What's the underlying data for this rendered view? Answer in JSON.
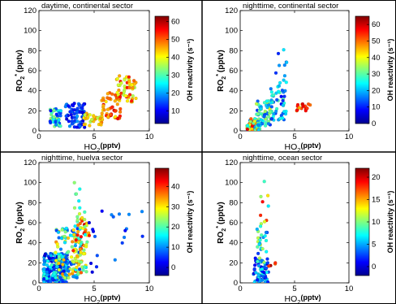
{
  "chart_data": [
    {
      "type": "scatter",
      "title": "daytime, continental sector",
      "xlabel_main": "HO",
      "xlabel_sub": "2",
      "xlabel_unit": "(pptv)",
      "ylabel_main": "RO",
      "ylabel_sub": "2",
      "ylabel_sup": "*",
      "ylabel_unit": "(pptv)",
      "xlim": [
        0,
        10
      ],
      "ylim": [
        0,
        120
      ],
      "xticks": [
        "0",
        "5",
        "10"
      ],
      "yticks": [
        "0",
        "20",
        "40",
        "60",
        "80",
        "100",
        "120"
      ],
      "colorbar": {
        "label": "OH reactivity (s⁻¹)",
        "range": [
          3,
          63
        ],
        "ticks": [
          "10",
          "20",
          "30",
          "40",
          "50",
          "60"
        ]
      },
      "clusters": [
        {
          "x": [
            1.0,
            2.0
          ],
          "y": [
            2,
            22
          ],
          "c": [
            10,
            35
          ],
          "n": 45
        },
        {
          "x": [
            2.4,
            4.2
          ],
          "y": [
            3,
            28
          ],
          "c": [
            8,
            20
          ],
          "n": 70
        },
        {
          "x": [
            4.0,
            5.8
          ],
          "y": [
            5,
            18
          ],
          "c": [
            35,
            50
          ],
          "n": 35
        },
        {
          "x": [
            5.6,
            7.4
          ],
          "y": [
            12,
            38
          ],
          "c": [
            40,
            58
          ],
          "n": 50
        },
        {
          "x": [
            7.0,
            8.8
          ],
          "y": [
            28,
            55
          ],
          "c": [
            35,
            55
          ],
          "n": 55
        }
      ]
    },
    {
      "type": "scatter",
      "title": "nighttime, continental sector",
      "xlabel_main": "HO",
      "xlabel_sub": "2",
      "xlabel_unit": "(pptv)",
      "ylabel_main": "RO",
      "ylabel_sub": "2",
      "ylabel_sup": "*",
      "ylabel_unit": "(pptv)",
      "xlim": [
        0,
        10
      ],
      "ylim": [
        0,
        120
      ],
      "xticks": [
        "0",
        "5",
        "10"
      ],
      "yticks": [
        "0",
        "20",
        "40",
        "60",
        "80",
        "100",
        "120"
      ],
      "colorbar": {
        "label": "OH reactivity (s⁻¹)",
        "range": [
          0,
          65
        ],
        "ticks": [
          "0",
          "10",
          "20",
          "30",
          "40",
          "50",
          "60"
        ]
      },
      "clusters": [
        {
          "x": [
            0.6,
            1.8
          ],
          "y": [
            0,
            12
          ],
          "c": [
            15,
            60
          ],
          "n": 70
        },
        {
          "x": [
            1.5,
            3.0
          ],
          "y": [
            5,
            30
          ],
          "c": [
            10,
            40
          ],
          "n": 60
        },
        {
          "x": [
            2.8,
            4.3
          ],
          "y": [
            10,
            45
          ],
          "c": [
            8,
            30
          ],
          "n": 45
        },
        {
          "x": [
            3.0,
            4.4
          ],
          "y": [
            40,
            82
          ],
          "c": [
            10,
            25
          ],
          "n": 12
        },
        {
          "x": [
            5.2,
            6.6
          ],
          "y": [
            20,
            27
          ],
          "c": [
            45,
            60
          ],
          "n": 18
        }
      ]
    },
    {
      "type": "scatter",
      "title": "nighttime, huelva sector",
      "xlabel_main": "HO",
      "xlabel_sub": "2",
      "xlabel_unit": "(pptv)",
      "ylabel_main": "RO",
      "ylabel_sub": "2",
      "ylabel_sup": "*",
      "ylabel_unit": "(pptv)",
      "xlim": [
        0,
        10
      ],
      "ylim": [
        0,
        120
      ],
      "xticks": [
        "0",
        "5",
        "10"
      ],
      "yticks": [
        "0",
        "20",
        "40",
        "60",
        "80",
        "100",
        "120"
      ],
      "colorbar": {
        "label": "OH reactivity (s⁻¹)",
        "range": [
          -4,
          49
        ],
        "ticks": [
          "0",
          "10",
          "20",
          "30",
          "40"
        ]
      },
      "clusters": [
        {
          "x": [
            0.4,
            2.6
          ],
          "y": [
            0,
            30
          ],
          "c": [
            0,
            20
          ],
          "n": 220
        },
        {
          "x": [
            1.5,
            3.8
          ],
          "y": [
            5,
            55
          ],
          "c": [
            5,
            35
          ],
          "n": 110
        },
        {
          "x": [
            3.0,
            4.6
          ],
          "y": [
            10,
            65
          ],
          "c": [
            15,
            45
          ],
          "n": 70
        },
        {
          "x": [
            3.0,
            4.2
          ],
          "y": [
            55,
            100
          ],
          "c": [
            15,
            30
          ],
          "n": 12
        },
        {
          "x": [
            4.5,
            9.5
          ],
          "y": [
            10,
            72
          ],
          "c": [
            0,
            10
          ],
          "n": 20
        }
      ]
    },
    {
      "type": "scatter",
      "title": "nighttime, ocean sector",
      "xlabel_main": "HO",
      "xlabel_sub": "2",
      "xlabel_unit": "(pptv)",
      "ylabel_main": "RO",
      "ylabel_sub": "2",
      "ylabel_sup": "*",
      "ylabel_unit": "(pptv)",
      "xlim": [
        0,
        10
      ],
      "ylim": [
        0,
        120
      ],
      "xticks": [
        "0",
        "5",
        "10"
      ],
      "yticks": [
        "0",
        "20",
        "40",
        "60",
        "80",
        "100",
        "120"
      ],
      "colorbar": {
        "label": "OH reactivity (s⁻¹)",
        "range": [
          -2,
          22
        ],
        "ticks": [
          "0",
          "5",
          "10",
          "15",
          "20"
        ]
      },
      "clusters": [
        {
          "x": [
            1.2,
            2.6
          ],
          "y": [
            0,
            25
          ],
          "c": [
            0,
            8
          ],
          "n": 60
        },
        {
          "x": [
            1.5,
            2.5
          ],
          "y": [
            20,
            60
          ],
          "c": [
            2,
            12
          ],
          "n": 30
        },
        {
          "x": [
            1.8,
            2.6
          ],
          "y": [
            55,
            105
          ],
          "c": [
            5,
            20
          ],
          "n": 8
        },
        {
          "x": [
            2.6,
            3.6
          ],
          "y": [
            12,
            22
          ],
          "c": [
            15,
            21
          ],
          "n": 4
        }
      ]
    }
  ]
}
